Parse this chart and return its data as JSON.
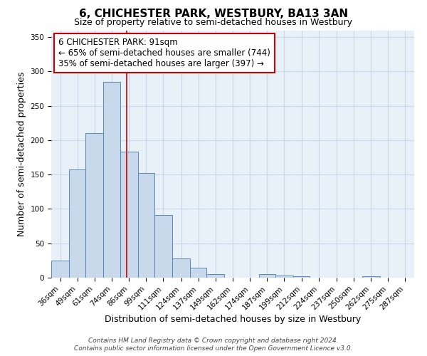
{
  "title": "6, CHICHESTER PARK, WESTBURY, BA13 3AN",
  "subtitle": "Size of property relative to semi-detached houses in Westbury",
  "xlabel": "Distribution of semi-detached houses by size in Westbury",
  "ylabel": "Number of semi-detached properties",
  "bin_labels": [
    "36sqm",
    "49sqm",
    "61sqm",
    "74sqm",
    "86sqm",
    "99sqm",
    "111sqm",
    "124sqm",
    "137sqm",
    "149sqm",
    "162sqm",
    "174sqm",
    "187sqm",
    "199sqm",
    "212sqm",
    "224sqm",
    "237sqm",
    "250sqm",
    "262sqm",
    "275sqm",
    "287sqm"
  ],
  "bin_edges": [
    36,
    49,
    61,
    74,
    86,
    99,
    111,
    124,
    137,
    149,
    162,
    174,
    187,
    199,
    212,
    224,
    237,
    250,
    262,
    275,
    287,
    300
  ],
  "bar_heights": [
    25,
    157,
    210,
    285,
    183,
    152,
    91,
    28,
    14,
    5,
    0,
    0,
    5,
    3,
    2,
    0,
    0,
    0,
    2,
    0,
    0
  ],
  "bar_color": "#c9d9ec",
  "bar_edge_color": "#5588bb",
  "property_line_x": 91,
  "ylim": [
    0,
    360
  ],
  "yticks": [
    0,
    50,
    100,
    150,
    200,
    250,
    300,
    350
  ],
  "annotation_title": "6 CHICHESTER PARK: 91sqm",
  "annotation_line1": "← 65% of semi-detached houses are smaller (744)",
  "annotation_line2": "35% of semi-detached houses are larger (397) →",
  "annotation_box_color": "#ffffff",
  "annotation_box_edge_color": "#cc0000",
  "footer_line1": "Contains HM Land Registry data © Crown copyright and database right 2024.",
  "footer_line2": "Contains public sector information licensed under the Open Government Licence v3.0.",
  "background_color": "#ffffff",
  "grid_color": "#c8d8e8",
  "title_fontsize": 11,
  "subtitle_fontsize": 9,
  "axis_label_fontsize": 9,
  "tick_label_fontsize": 7.5,
  "annotation_fontsize": 8.5,
  "footer_fontsize": 6.5
}
